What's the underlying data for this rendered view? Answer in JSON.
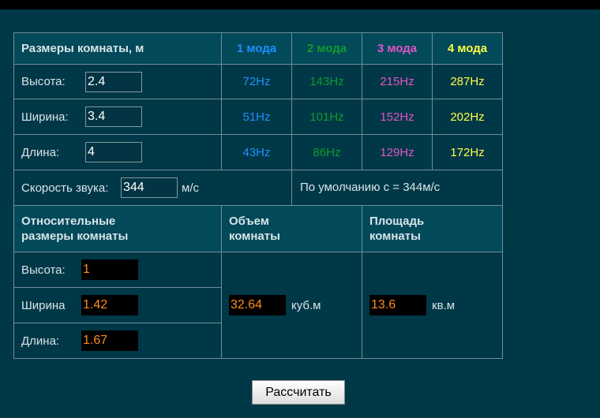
{
  "colors": {
    "mode1": "#1e90ff",
    "mode2": "#119a2e",
    "mode3": "#e055c8",
    "mode4": "#ffff44",
    "output": "#ff8a1a"
  },
  "header": {
    "title": "Размеры комнаты, м",
    "modes": [
      "1 мода",
      "2 мода",
      "3 мода",
      "4 мода"
    ]
  },
  "rows": [
    {
      "label": "Высота:",
      "value": "2.4",
      "hz": [
        "72Hz",
        "143Hz",
        "215Hz",
        "287Hz"
      ]
    },
    {
      "label": "Ширина:",
      "value": "3.4",
      "hz": [
        "51Hz",
        "101Hz",
        "152Hz",
        "202Hz"
      ]
    },
    {
      "label": "Длина:",
      "value": "4",
      "hz": [
        "43Hz",
        "86Hz",
        "129Hz",
        "172Hz"
      ]
    }
  ],
  "speed": {
    "label": "Скорость звука:",
    "value": "344",
    "unit": "м/с",
    "default_note": "По  умолчанию с = 344м/с"
  },
  "relative": {
    "title": "Относительные размеры комнаты",
    "items": [
      {
        "label": "Высота:",
        "value": "1"
      },
      {
        "label": "Ширина",
        "value": "1.42"
      },
      {
        "label": "Длина:",
        "value": "1.67"
      }
    ]
  },
  "volume": {
    "title": "Объем комнаты",
    "value": "32.64",
    "unit": "куб.м"
  },
  "area": {
    "title": "Площадь комнаты",
    "value": "13.6",
    "unit": "кв.м"
  },
  "calculate_label": "Рассчитать"
}
